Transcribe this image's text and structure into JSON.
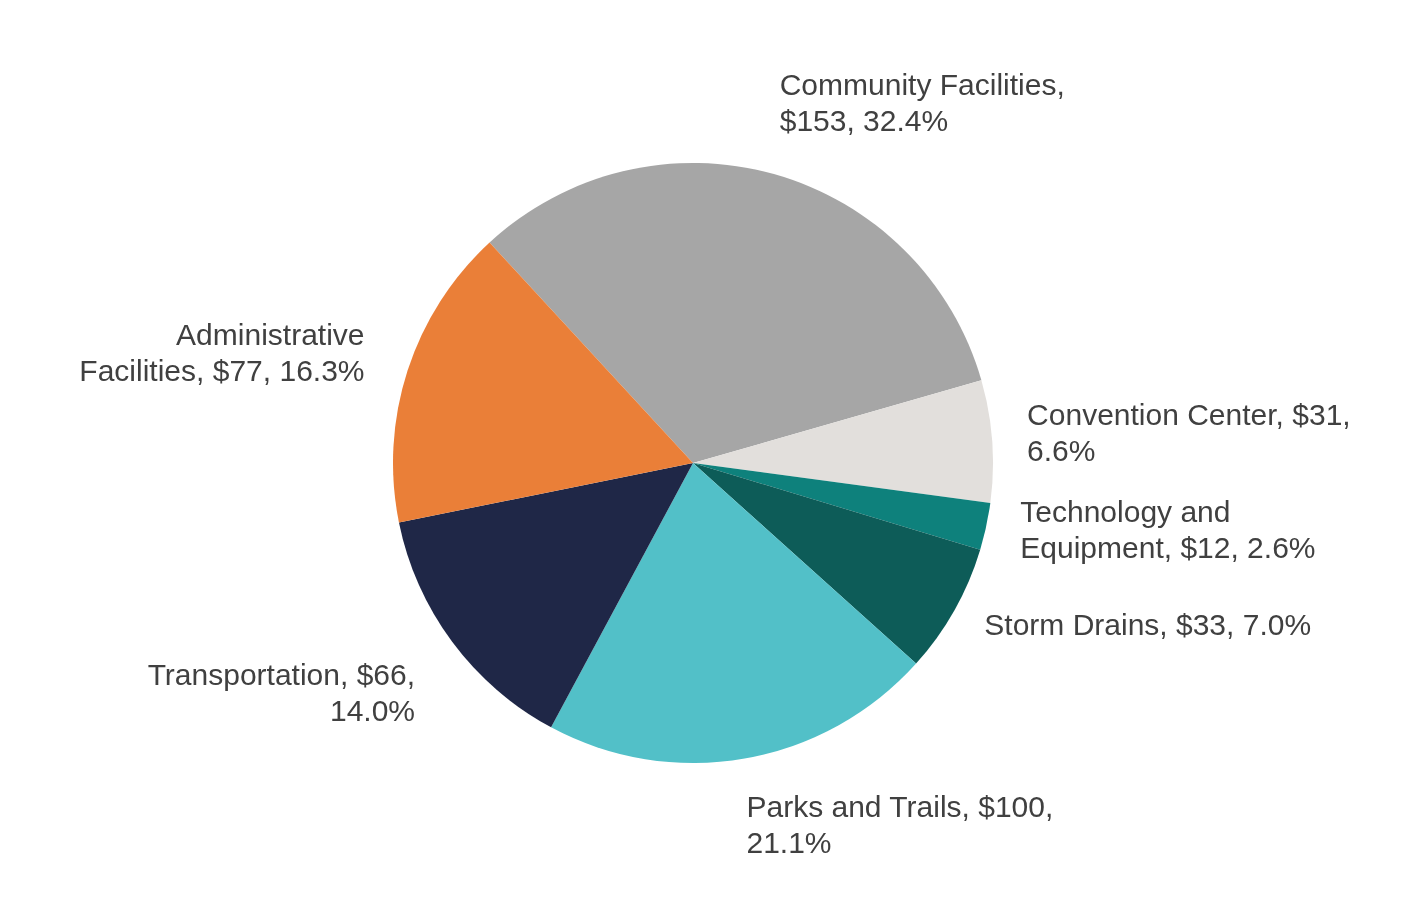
{
  "chart_data": {
    "type": "pie",
    "categories": [
      "Community Facilities",
      "Convention Center",
      "Technology and Equipment",
      "Storm Drains",
      "Parks and Trails",
      "Transportation",
      "Administrative Facilities"
    ],
    "values": [
      153,
      31,
      12,
      33,
      100,
      66,
      77
    ],
    "colors": [
      "#a6a6a6",
      "#e2dfdc",
      "#0e817c",
      "#0d5c58",
      "#52c0c8",
      "#1f2747",
      "#ea7f38"
    ],
    "value_labels": [
      ", $153, 32.4%",
      ", $31, 6.6%",
      ", $12, 2.6%",
      ", $33, 7.0%",
      ", $100, 21.1%",
      ", $66, 14.0%",
      ", $77, 16.3%"
    ],
    "legend": false
  }
}
